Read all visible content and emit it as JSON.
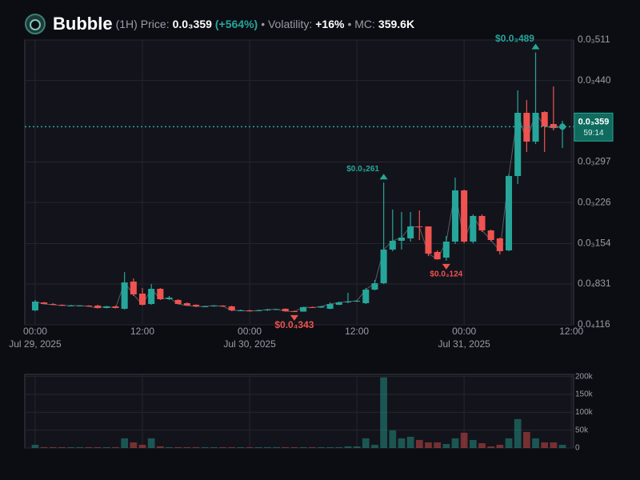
{
  "header": {
    "name": "Bubble",
    "interval": "(1H)",
    "price_label": "Price:",
    "price": "0.0₃359",
    "change": "(+564%)",
    "volatility_label": "• Volatility:",
    "volatility": "+16%",
    "mc_label": "• MC:",
    "mc": "359.6K"
  },
  "chart_data": [
    {
      "type": "candlestick",
      "x": [
        0,
        1,
        2,
        3,
        4,
        5,
        6,
        7,
        8,
        9,
        10,
        11,
        12,
        13,
        14,
        15,
        16,
        17,
        18,
        19,
        20,
        21,
        22,
        23,
        24,
        25,
        26,
        27,
        28,
        29,
        30,
        31,
        32,
        33,
        34,
        35,
        36,
        37,
        38,
        39,
        40,
        41,
        42,
        43,
        44,
        45,
        46,
        47,
        48,
        49,
        50,
        51,
        52,
        53,
        54,
        55,
        56,
        57,
        58,
        59
      ],
      "open": [
        3.69e-05,
        5.09e-05,
        4.81e-05,
        4.67e-05,
        4.53e-05,
        4.53e-05,
        4.53e-05,
        4.53e-05,
        4.11e-05,
        4.39e-05,
        3.97e-05,
        8.74e-05,
        6.63e-05,
        4.81e-05,
        7.47e-05,
        5.65e-05,
        5.51e-05,
        4.95e-05,
        4.67e-05,
        4.39e-05,
        4.39e-05,
        4.53e-05,
        4.39e-05,
        3.69e-05,
        3.69e-05,
        3.62e-05,
        3.69e-05,
        3.83e-05,
        3.97e-05,
        3.54e-05,
        3.47e-05,
        4.25e-05,
        4.18e-05,
        3.97e-05,
        4.67e-05,
        5.09e-05,
        5.23e-05,
        4.95e-05,
        7.33e-05,
        8.45e-05,
        0.0001435,
        0.0001589,
        0.0001631,
        0.0001841,
        0.0001841,
        0.0001393,
        0.0001294,
        0.0001575,
        0.0002473,
        0.0001575,
        0.0002024,
        0.0001771,
        0.0001631,
        0.0001421,
        0.0002725,
        0.0003833,
        0.0003328,
        0.0003847,
        0.0003637,
        0.0003567
      ],
      "high": [
        5.51e-05,
        5.15e-05,
        4.95e-05,
        4.75e-05,
        4.67e-05,
        4.6e-05,
        4.6e-05,
        4.67e-05,
        4.46e-05,
        4.53e-05,
        0.000104,
        9.3e-05,
        7.61e-05,
        8.31e-05,
        7.61e-05,
        6.21e-05,
        5.65e-05,
        5.09e-05,
        4.75e-05,
        4.53e-05,
        4.6e-05,
        4.6e-05,
        4.53e-05,
        3.83e-05,
        3.83e-05,
        3.83e-05,
        3.97e-05,
        3.97e-05,
        4.04e-05,
        3.69e-05,
        4.32e-05,
        4.39e-05,
        4.46e-05,
        5.09e-05,
        5.23e-05,
        6.77e-05,
        5.51e-05,
        7.61e-05,
        9.02e-05,
        0.000261,
        0.0002136,
        0.0002094,
        0.0002094,
        0.0002122,
        0.0001841,
        0.0001421,
        0.0001673,
        0.0002697,
        0.0002487,
        0.0002052,
        0.0002052,
        0.0001785,
        0.0001645,
        0.0002753,
        0.0004226,
        0.0004058,
        0.000489,
        0.0003861,
        0.0004296,
        0.0003693
      ],
      "low": [
        3.54e-05,
        4.75e-05,
        4.6e-05,
        4.46e-05,
        4.46e-05,
        4.46e-05,
        4.32e-05,
        4.04e-05,
        4.04e-05,
        4.04e-05,
        3.83e-05,
        6.21e-05,
        4.53e-05,
        4.67e-05,
        5.51e-05,
        5.51e-05,
        4.75e-05,
        4.53e-05,
        4.25e-05,
        4.25e-05,
        4.32e-05,
        4.32e-05,
        3.54e-05,
        3.54e-05,
        3.54e-05,
        3.54e-05,
        3.62e-05,
        3.76e-05,
        3.47e-05,
        3.43e-05,
        3.47e-05,
        4.11e-05,
        4.11e-05,
        3.9e-05,
        4.6e-05,
        4.95e-05,
        5.16e-05,
        4.81e-05,
        7.19e-05,
        8.31e-05,
        0.0001407,
        0.0001435,
        0.0001575,
        0.0001603,
        0.0001322,
        0.0001258,
        0.000124,
        0.0001533,
        0.0001547,
        0.0001547,
        0.0001743,
        0.0001575,
        0.000135,
        0.0001407,
        0.0002585,
        0.0003146,
        0.0003286,
        0.0003146,
        0.0003525,
        0.0003216
      ],
      "close": [
        5.23e-05,
        4.81e-05,
        4.67e-05,
        4.53e-05,
        4.53e-05,
        4.53e-05,
        4.39e-05,
        4.11e-05,
        4.39e-05,
        4.11e-05,
        8.59e-05,
        6.49e-05,
        4.67e-05,
        7.47e-05,
        5.65e-05,
        5.93e-05,
        4.81e-05,
        4.53e-05,
        4.39e-05,
        4.39e-05,
        4.53e-05,
        4.39e-05,
        3.69e-05,
        3.69e-05,
        3.54e-05,
        3.69e-05,
        3.83e-05,
        3.9e-05,
        3.54e-05,
        3.47e-05,
        4.25e-05,
        4.18e-05,
        4.39e-05,
        4.81e-05,
        5.09e-05,
        5.23e-05,
        5.37e-05,
        7.33e-05,
        8.45e-05,
        0.0001435,
        0.0001589,
        0.0001645,
        0.0001841,
        0.0001827,
        0.0001364,
        0.0001265,
        0.0001575,
        0.0002473,
        0.0001575,
        0.0002024,
        0.0001771,
        0.0001603,
        0.0001407,
        0.0002725,
        0.0003833,
        0.0003328,
        0.0003833,
        0.0003595,
        0.0003567,
        0.000359
      ],
      "up_color": "#26a69a",
      "down_color": "#ef5350",
      "xlim": [
        -1.16,
        60.25
      ],
      "xticks": [
        {
          "value": 0,
          "label": "00:00"
        },
        {
          "value": 12,
          "label": "12:00"
        },
        {
          "value": 24,
          "label": "00:00"
        },
        {
          "value": 36,
          "label": "12:00"
        },
        {
          "value": 48,
          "label": "00:00"
        },
        {
          "value": 60,
          "label": "12:00"
        }
      ],
      "xtick_dates": [
        {
          "value": 0,
          "label": "Jul 29, 2025"
        },
        {
          "value": 24,
          "label": "Jul 30, 2025"
        },
        {
          "value": 48,
          "label": "Jul 31, 2025"
        }
      ],
      "ylim": [
        1.16e-05,
        0.000511
      ],
      "yticks": [
        {
          "value": 1.16e-05,
          "label": "0.0₄116"
        },
        {
          "value": 8.31e-05,
          "label": "0.0₄831"
        },
        {
          "value": 0.000154,
          "label": "0.0₃154"
        },
        {
          "value": 0.000226,
          "label": "0.0₃226"
        },
        {
          "value": 0.000297,
          "label": "0.0₃297"
        },
        {
          "value": 0.00044,
          "label": "0.0₃440"
        },
        {
          "value": 0.000511,
          "label": "0.0₃511"
        }
      ],
      "grid": true,
      "last_price": {
        "value": 0.000359,
        "label": "0.0₃359",
        "countdown": "59:14",
        "color": "#26a69a"
      },
      "annotations": [
        {
          "x": 56,
          "value": 0.000489,
          "label": "$0.0₃489",
          "position": "above",
          "color": "#26a69a"
        },
        {
          "x": 39,
          "value": 0.000261,
          "label": "$0.0₃261",
          "position": "above",
          "color": "#26a69a"
        },
        {
          "x": 46,
          "value": 0.000124,
          "label": "$0.0₃124",
          "position": "below",
          "color": "#ef5350"
        },
        {
          "x": 29,
          "value": 3.43e-05,
          "label": "$0.0₄343",
          "position": "below",
          "color": "#ef5350"
        }
      ]
    },
    {
      "type": "bar",
      "x": [
        0,
        1,
        2,
        3,
        4,
        5,
        6,
        7,
        8,
        9,
        10,
        11,
        12,
        13,
        14,
        15,
        16,
        17,
        18,
        19,
        20,
        21,
        22,
        23,
        24,
        25,
        26,
        27,
        28,
        29,
        30,
        31,
        32,
        33,
        34,
        35,
        36,
        37,
        38,
        39,
        40,
        41,
        42,
        43,
        44,
        45,
        46,
        47,
        48,
        49,
        50,
        51,
        52,
        53,
        54,
        55,
        56,
        57,
        58,
        59
      ],
      "values": [
        9000,
        2200,
        2200,
        2200,
        2200,
        2200,
        2200,
        2200,
        2200,
        2200,
        27000,
        15700,
        9000,
        27000,
        4500,
        2200,
        2200,
        2200,
        2200,
        2200,
        2200,
        2200,
        2200,
        2200,
        2200,
        2200,
        2200,
        2200,
        2200,
        2200,
        2200,
        2200,
        2200,
        2200,
        2200,
        4500,
        4500,
        27000,
        9000,
        197700,
        49400,
        27000,
        31500,
        22500,
        15700,
        15700,
        11200,
        27000,
        42700,
        22500,
        13500,
        4500,
        9000,
        27000,
        80900,
        44900,
        27000,
        15700,
        15700,
        9000
      ],
      "xlim": [
        -1.16,
        60.25
      ],
      "ylim": [
        0,
        206000
      ],
      "yticks": [
        0,
        {
          "value": 50000,
          "label": "50k"
        },
        {
          "value": 100000,
          "label": "100k"
        },
        {
          "value": 150000,
          "label": "150k"
        },
        {
          "value": 200000,
          "label": "200k"
        }
      ],
      "grid": true
    }
  ]
}
